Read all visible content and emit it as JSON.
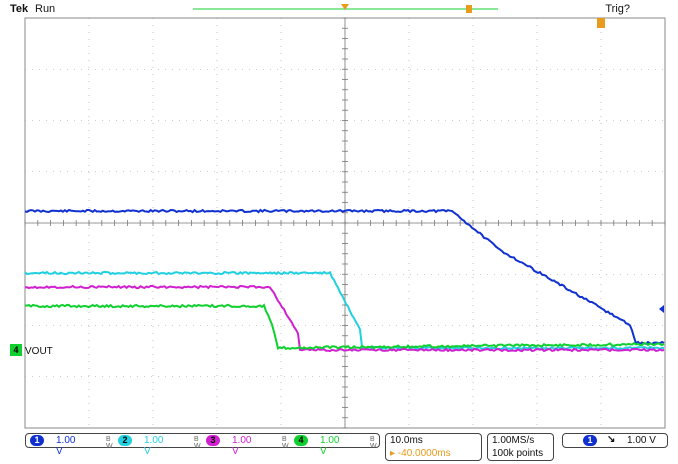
{
  "header": {
    "brand": "Tek",
    "state": "Run",
    "trigger_status": "Trig?"
  },
  "colors": {
    "ch1": "#1030d0",
    "ch2": "#20d0e0",
    "ch3": "#d020d0",
    "ch4": "#10d030",
    "grid": "#9a9a9a",
    "trigger": "#e89b1c"
  },
  "channels": [
    {
      "number": "1",
      "scale": "1.00 V",
      "bw_symbol": "B W",
      "color": "#1030d0"
    },
    {
      "number": "2",
      "scale": "1.00 V",
      "bw_symbol": "B W",
      "color": "#20d0e0"
    },
    {
      "number": "3",
      "scale": "1.00 V",
      "bw_symbol": "B W",
      "color": "#d020d0"
    },
    {
      "number": "4",
      "scale": "1.00 V",
      "bw_symbol": "B W",
      "color": "#10d030"
    }
  ],
  "ch4_label": "VOUT",
  "timebase": {
    "scale": "10.0ms",
    "delay": "▸ -40.0000ms"
  },
  "acquisition": {
    "rate": "1.00MS/s",
    "record": "100k points"
  },
  "trigger": {
    "source": "1",
    "slope_icon": "falling-edge",
    "level": "1.00 V",
    "slope_glyph": "↘"
  }
}
